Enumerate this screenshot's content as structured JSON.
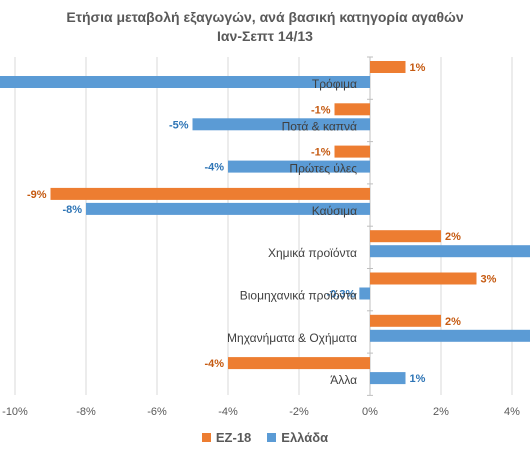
{
  "chart_data": {
    "type": "bar",
    "orientation": "horizontal",
    "title": "Ετήσια μεταβολή εξαγωγών, ανά βασική κατηγορία αγαθών",
    "subtitle": "Ιαν-Σεπτ 14/13",
    "categories": [
      "Τρόφιμα",
      "Ποτά & καπνά",
      "Πρώτες ύλες",
      "Καύσιμα",
      "Χημικά προϊόντα",
      "Βιομηχανικά προϊόντα",
      "Μηχανήματα & Οχήματα",
      "Άλλα"
    ],
    "series": [
      {
        "name": "ΕΖ-18",
        "color": "#ED7D31",
        "values": [
          1,
          -1,
          -1,
          -9,
          2,
          3,
          2,
          -4
        ],
        "labels": [
          "1%",
          "-1%",
          "-1%",
          "-9%",
          "2%",
          "3%",
          "2%",
          "-4%"
        ]
      },
      {
        "name": "Ελλάδα",
        "color": "#5B9BD5",
        "values": [
          -10.5,
          -5,
          -4,
          -8,
          4.8,
          -0.3,
          4.8,
          1
        ],
        "labels": [
          "%",
          "-5%",
          "-4%",
          "-8%",
          "",
          "-0,3%",
          "",
          "1%"
        ]
      }
    ],
    "x_ticks": [
      -10,
      -8,
      -6,
      -4,
      -2,
      0,
      2,
      4
    ],
    "x_tick_labels": [
      "-10%",
      "-8%",
      "-6%",
      "-4%",
      "-2%",
      "0%",
      "2%",
      "4%"
    ],
    "xlim": [
      -10.4,
      4.6
    ],
    "grid": true,
    "legend_position": "bottom"
  }
}
